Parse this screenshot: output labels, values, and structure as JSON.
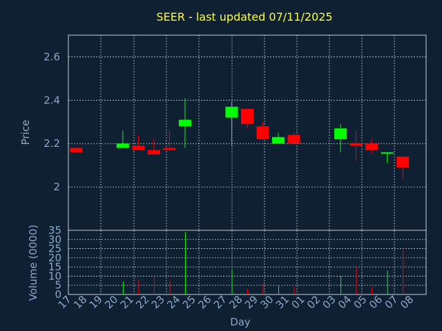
{
  "chart_data": [
    {
      "type": "candlestick",
      "title": "SEER - last updated 07/11/2025",
      "ylabel": "Price",
      "ylim": [
        1.8,
        2.7
      ],
      "yticks": [
        "2",
        "2.2",
        "2.4",
        "2.6"
      ],
      "ytick_values": [
        2.0,
        2.2,
        2.4,
        2.6
      ],
      "grid": true,
      "up_color": "#00ff00",
      "down_color": "#ff0000",
      "categories": [
        "17",
        "18",
        "19",
        "20",
        "21",
        "22",
        "23",
        "24",
        "25",
        "26",
        "27",
        "28",
        "29",
        "30",
        "31",
        "01",
        "02",
        "03",
        "04",
        "05",
        "06",
        "07",
        "08"
      ],
      "candles": [
        {
          "day": "17",
          "open": 2.18,
          "high": 2.18,
          "low": 2.16,
          "close": 2.16
        },
        {
          "day": "20",
          "open": 2.18,
          "high": 2.26,
          "low": 2.18,
          "close": 2.2
        },
        {
          "day": "21",
          "open": 2.19,
          "high": 2.24,
          "low": 2.17,
          "close": 2.17
        },
        {
          "day": "22",
          "open": 2.17,
          "high": 2.22,
          "low": 2.15,
          "close": 2.15
        },
        {
          "day": "23",
          "open": 2.18,
          "high": 2.26,
          "low": 2.17,
          "close": 2.17
        },
        {
          "day": "24",
          "open": 2.28,
          "high": 2.41,
          "low": 2.18,
          "close": 2.31
        },
        {
          "day": "27",
          "open": 2.32,
          "high": 2.39,
          "low": 2.19,
          "close": 2.37
        },
        {
          "day": "28",
          "open": 2.36,
          "high": 2.36,
          "low": 2.27,
          "close": 2.29
        },
        {
          "day": "29",
          "open": 2.28,
          "high": 2.3,
          "low": 2.22,
          "close": 2.22
        },
        {
          "day": "30",
          "open": 2.2,
          "high": 2.25,
          "low": 2.2,
          "close": 2.23
        },
        {
          "day": "31",
          "open": 2.24,
          "high": 2.25,
          "low": 2.2,
          "close": 2.2
        },
        {
          "day": "03",
          "open": 2.22,
          "high": 2.29,
          "low": 2.16,
          "close": 2.27
        },
        {
          "day": "04",
          "open": 2.2,
          "high": 2.26,
          "low": 2.12,
          "close": 2.19
        },
        {
          "day": "05",
          "open": 2.2,
          "high": 2.22,
          "low": 2.15,
          "close": 2.17
        },
        {
          "day": "06",
          "open": 2.16,
          "high": 2.16,
          "low": 2.11,
          "close": 2.16
        },
        {
          "day": "07",
          "open": 2.14,
          "high": 2.14,
          "low": 2.04,
          "close": 2.09
        }
      ]
    },
    {
      "type": "bar",
      "ylabel": "Volume (0000)",
      "xlabel": "Day",
      "ylim": [
        0,
        35
      ],
      "yticks": [
        "0",
        "5",
        "10",
        "15",
        "20",
        "25",
        "30",
        "35"
      ],
      "ytick_values": [
        0,
        5,
        10,
        15,
        20,
        25,
        30,
        35
      ],
      "grid": true,
      "categories": [
        "17",
        "18",
        "19",
        "20",
        "21",
        "22",
        "23",
        "24",
        "25",
        "26",
        "27",
        "28",
        "29",
        "30",
        "31",
        "01",
        "02",
        "03",
        "04",
        "05",
        "06",
        "07",
        "08"
      ],
      "bars": [
        {
          "day": "20",
          "value": 7,
          "color": "#00ff00"
        },
        {
          "day": "21",
          "value": 8,
          "color": "#ff0000"
        },
        {
          "day": "22",
          "value": 10,
          "color": "#ff0000"
        },
        {
          "day": "23",
          "value": 8,
          "color": "#ff0000"
        },
        {
          "day": "24",
          "value": 34,
          "color": "#00ff00"
        },
        {
          "day": "27",
          "value": 14,
          "color": "#00ff00"
        },
        {
          "day": "28",
          "value": 3,
          "color": "#ff0000"
        },
        {
          "day": "29",
          "value": 6,
          "color": "#ff0000"
        },
        {
          "day": "30",
          "value": 5,
          "color": "#00ff00"
        },
        {
          "day": "31",
          "value": 4,
          "color": "#ff0000"
        },
        {
          "day": "03",
          "value": 10,
          "color": "#00ff00"
        },
        {
          "day": "04",
          "value": 15,
          "color": "#ff0000"
        },
        {
          "day": "05",
          "value": 4,
          "color": "#ff0000"
        },
        {
          "day": "06",
          "value": 13,
          "color": "#00ff00"
        },
        {
          "day": "07",
          "value": 25,
          "color": "#ff0000"
        }
      ]
    }
  ]
}
